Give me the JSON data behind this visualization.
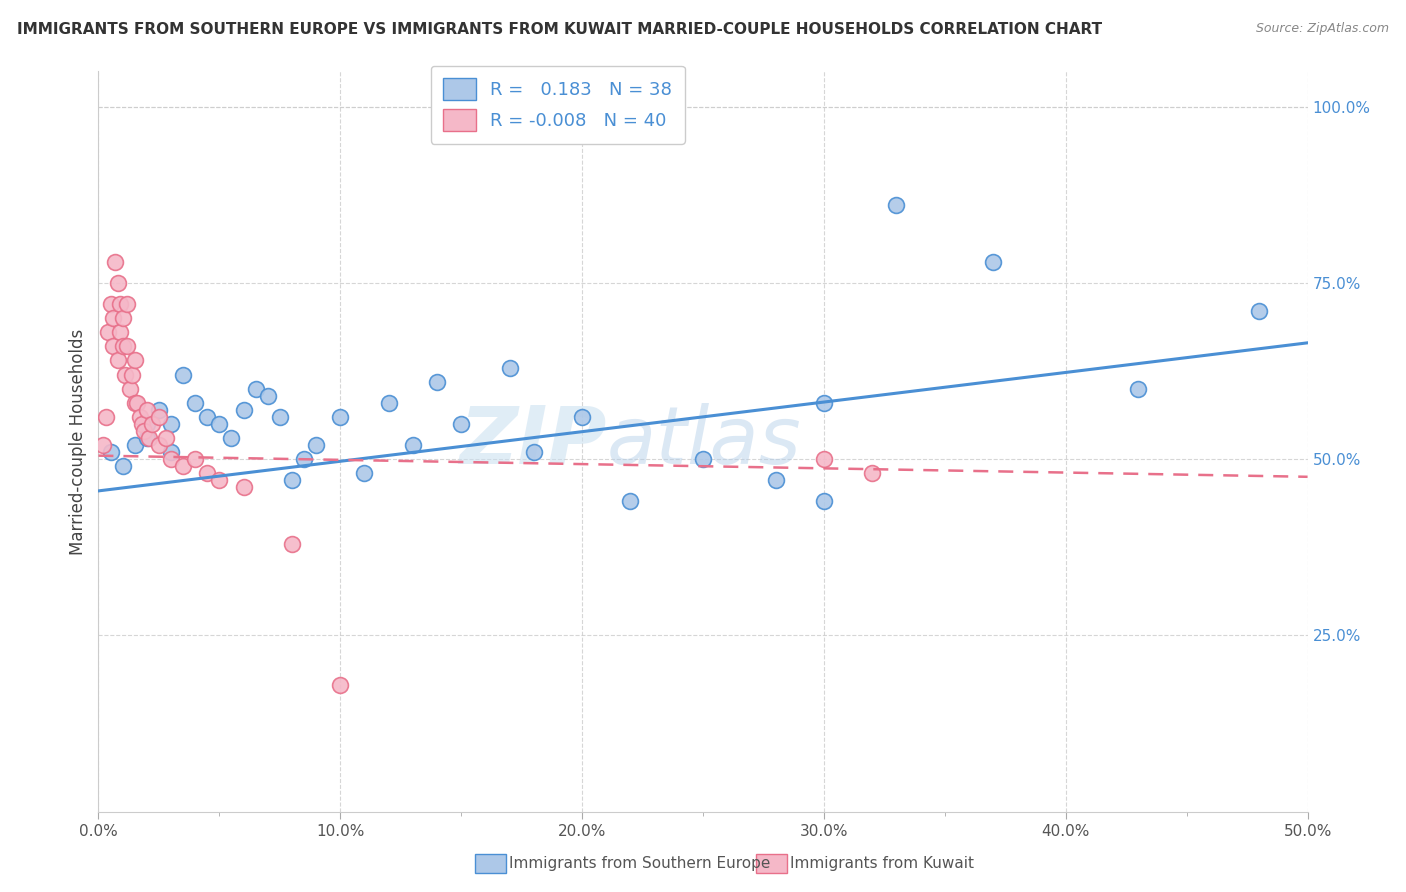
{
  "title": "IMMIGRANTS FROM SOUTHERN EUROPE VS IMMIGRANTS FROM KUWAIT MARRIED-COUPLE HOUSEHOLDS CORRELATION CHART",
  "source": "Source: ZipAtlas.com",
  "ylabel": "Married-couple Households",
  "xlim": [
    0,
    0.5
  ],
  "ylim": [
    0,
    1.05
  ],
  "xtick_labels": [
    "0.0%",
    "10.0%",
    "20.0%",
    "30.0%",
    "40.0%",
    "50.0%"
  ],
  "xtick_vals": [
    0.0,
    0.1,
    0.2,
    0.3,
    0.4,
    0.5
  ],
  "ytick_labels": [
    "25.0%",
    "50.0%",
    "75.0%",
    "100.0%"
  ],
  "ytick_vals": [
    0.25,
    0.5,
    0.75,
    1.0
  ],
  "legend_label1": "Immigrants from Southern Europe",
  "legend_label2": "Immigrants from Kuwait",
  "R1": 0.183,
  "N1": 38,
  "R2": -0.008,
  "N2": 40,
  "color_blue": "#adc8e8",
  "color_pink": "#f5b8c8",
  "line_blue": "#4a8fd4",
  "line_pink": "#e8708a",
  "watermark_zip": "ZIP",
  "watermark_atlas": "atlas",
  "blue_scatter_x": [
    0.005,
    0.01,
    0.015,
    0.02,
    0.02,
    0.025,
    0.03,
    0.03,
    0.035,
    0.04,
    0.045,
    0.05,
    0.055,
    0.06,
    0.065,
    0.07,
    0.075,
    0.08,
    0.085,
    0.09,
    0.1,
    0.11,
    0.12,
    0.13,
    0.14,
    0.15,
    0.17,
    0.18,
    0.2,
    0.22,
    0.25,
    0.28,
    0.3,
    0.33,
    0.37,
    0.43,
    0.48,
    0.3
  ],
  "blue_scatter_y": [
    0.51,
    0.49,
    0.52,
    0.53,
    0.55,
    0.57,
    0.51,
    0.55,
    0.62,
    0.58,
    0.56,
    0.55,
    0.53,
    0.57,
    0.6,
    0.59,
    0.56,
    0.47,
    0.5,
    0.52,
    0.56,
    0.48,
    0.58,
    0.52,
    0.61,
    0.55,
    0.63,
    0.51,
    0.56,
    0.44,
    0.5,
    0.47,
    0.58,
    0.86,
    0.78,
    0.6,
    0.71,
    0.44
  ],
  "pink_scatter_x": [
    0.002,
    0.003,
    0.004,
    0.005,
    0.006,
    0.006,
    0.007,
    0.008,
    0.008,
    0.009,
    0.009,
    0.01,
    0.01,
    0.011,
    0.012,
    0.012,
    0.013,
    0.014,
    0.015,
    0.015,
    0.016,
    0.017,
    0.018,
    0.019,
    0.02,
    0.021,
    0.022,
    0.025,
    0.025,
    0.028,
    0.03,
    0.035,
    0.04,
    0.045,
    0.05,
    0.06,
    0.08,
    0.1,
    0.3,
    0.32
  ],
  "pink_scatter_y": [
    0.52,
    0.56,
    0.68,
    0.72,
    0.66,
    0.7,
    0.78,
    0.75,
    0.64,
    0.68,
    0.72,
    0.66,
    0.7,
    0.62,
    0.66,
    0.72,
    0.6,
    0.62,
    0.58,
    0.64,
    0.58,
    0.56,
    0.55,
    0.54,
    0.57,
    0.53,
    0.55,
    0.52,
    0.56,
    0.53,
    0.5,
    0.49,
    0.5,
    0.48,
    0.47,
    0.46,
    0.38,
    0.18,
    0.5,
    0.48
  ],
  "blue_line_x0": 0.0,
  "blue_line_x1": 0.5,
  "blue_line_y0": 0.455,
  "blue_line_y1": 0.665,
  "pink_line_x0": 0.0,
  "pink_line_x1": 0.5,
  "pink_line_y0": 0.505,
  "pink_line_y1": 0.475
}
